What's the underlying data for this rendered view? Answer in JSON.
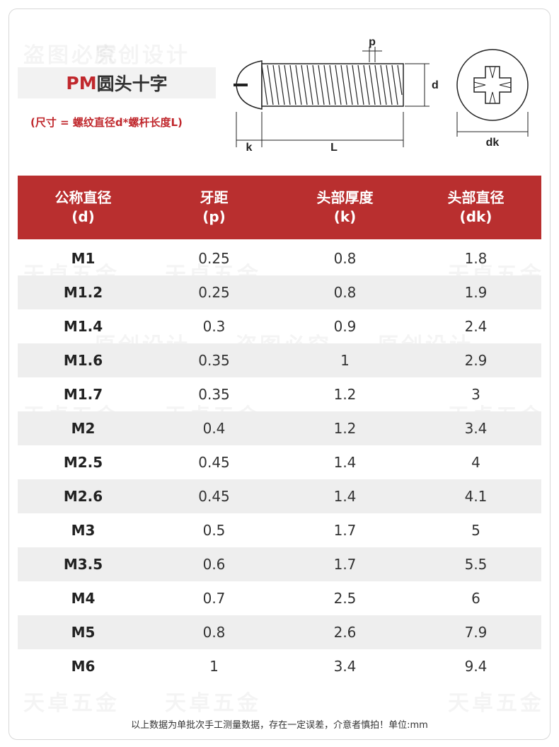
{
  "title": {
    "prefix": "PM",
    "main": "圆头十字"
  },
  "subtitle": "(尺寸 = 螺纹直径d*螺杆长度L)",
  "diagram": {
    "labels": {
      "p": "p",
      "d": "d",
      "k": "k",
      "L": "L",
      "dk": "dk"
    }
  },
  "table": {
    "headers": [
      {
        "name": "公称直径",
        "unit": "(d)"
      },
      {
        "name": "牙距",
        "unit": "(p)"
      },
      {
        "name": "头部厚度",
        "unit": "(k)"
      },
      {
        "name": "头部直径",
        "unit": "(dk)"
      }
    ],
    "rows": [
      [
        "M1",
        "0.25",
        "0.8",
        "1.8"
      ],
      [
        "M1.2",
        "0.25",
        "0.8",
        "1.9"
      ],
      [
        "M1.4",
        "0.3",
        "0.9",
        "2.4"
      ],
      [
        "M1.6",
        "0.35",
        "1",
        "2.9"
      ],
      [
        "M1.7",
        "0.35",
        "1.2",
        "3"
      ],
      [
        "M2",
        "0.4",
        "1.2",
        "3.4"
      ],
      [
        "M2.5",
        "0.45",
        "1.4",
        "4"
      ],
      [
        "M2.6",
        "0.45",
        "1.4",
        "4.1"
      ],
      [
        "M3",
        "0.5",
        "1.7",
        "5"
      ],
      [
        "M3.5",
        "0.6",
        "1.7",
        "5.5"
      ],
      [
        "M4",
        "0.7",
        "2.5",
        "6"
      ],
      [
        "M5",
        "0.8",
        "2.6",
        "7.9"
      ],
      [
        "M6",
        "1",
        "3.4",
        "9.4"
      ]
    ]
  },
  "footer": "以上数据为单批次手工测量数据，存在一定误差，介意者慎拍！单位:mm",
  "watermarks": [
    "天卓五金",
    "原创设计",
    "盗图必究"
  ],
  "colors": {
    "accent": "#b92f2f",
    "title_red": "#c0282d",
    "alt_row": "#eeeeee"
  }
}
